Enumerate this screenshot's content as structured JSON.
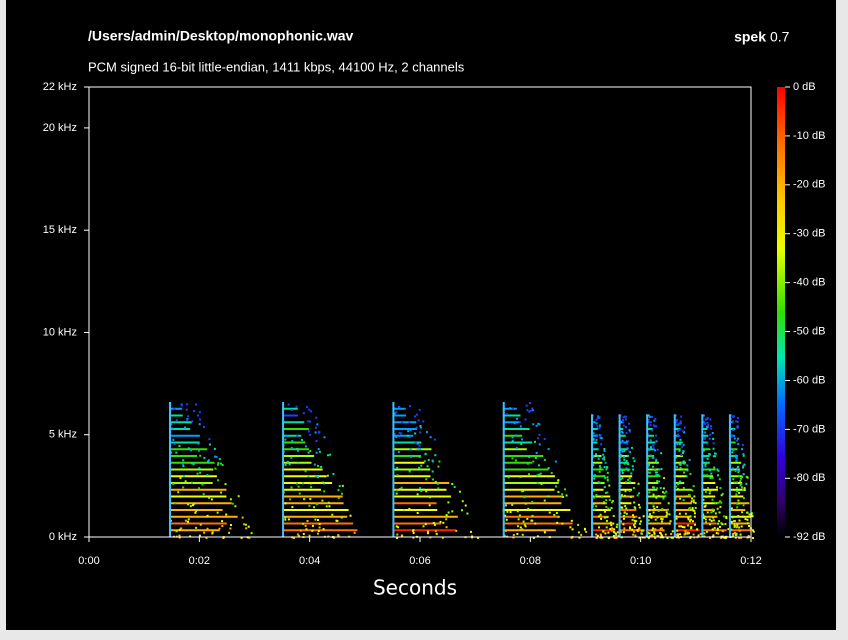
{
  "chart_data": {
    "type": "spectrogram",
    "title": "/Users/admin/Desktop/monophonic.wav",
    "app_name": "spek",
    "app_version": "0.7",
    "subtitle": "PCM signed 16-bit little-endian, 1411 kbps, 44100 Hz, 2 channels",
    "x_label": "Seconds",
    "xlim": [
      0,
      12
    ],
    "xticks": [
      {
        "value": 0,
        "label": "0:00"
      },
      {
        "value": 2,
        "label": "0:02"
      },
      {
        "value": 4,
        "label": "0:04"
      },
      {
        "value": 6,
        "label": "0:06"
      },
      {
        "value": 8,
        "label": "0:08"
      },
      {
        "value": 10,
        "label": "0:10"
      },
      {
        "value": 12,
        "label": "0:12"
      }
    ],
    "ylim": [
      0,
      22
    ],
    "yticks": [
      {
        "value": 0,
        "label": "0 kHz"
      },
      {
        "value": 5,
        "label": "5 kHz"
      },
      {
        "value": 10,
        "label": "10 kHz"
      },
      {
        "value": 15,
        "label": "15 kHz"
      },
      {
        "value": 20,
        "label": "20 kHz"
      },
      {
        "value": 22,
        "label": "22 kHz"
      }
    ],
    "clim": [
      -92,
      0
    ],
    "cticks": [
      {
        "value": 0,
        "label": "0 dB"
      },
      {
        "value": -10,
        "label": "-10 dB"
      },
      {
        "value": -20,
        "label": "-20 dB"
      },
      {
        "value": -30,
        "label": "-30 dB"
      },
      {
        "value": -40,
        "label": "-40 dB"
      },
      {
        "value": -50,
        "label": "-50 dB"
      },
      {
        "value": -60,
        "label": "-60 dB"
      },
      {
        "value": -70,
        "label": "-70 dB"
      },
      {
        "value": -80,
        "label": "-80 dB"
      },
      {
        "value": -92,
        "label": "-92 dB"
      }
    ]
  }
}
